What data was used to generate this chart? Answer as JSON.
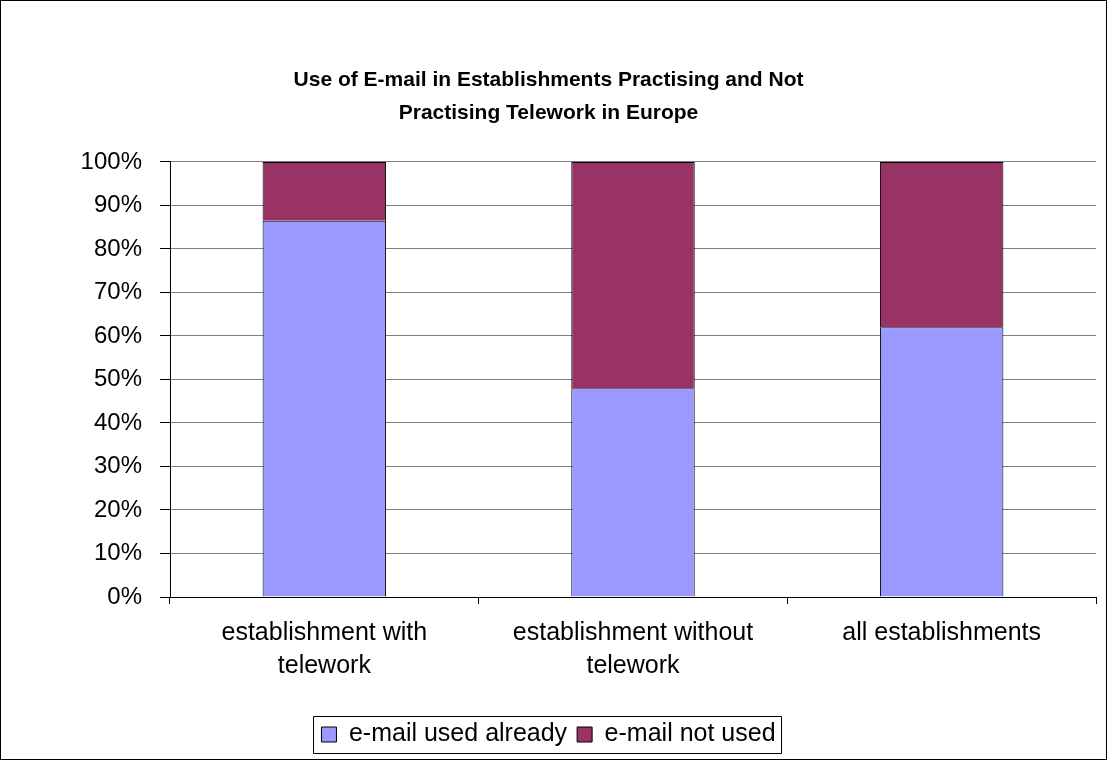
{
  "chart_data": {
    "type": "bar",
    "title": "Use of E-mail in Establishments Practising and Not Practising Telework in Europe",
    "categories": [
      "establishment with telework",
      "establishment without telework",
      "all establishments"
    ],
    "series": [
      {
        "name": "e-mail used already",
        "color": "#9999ff",
        "values": [
          86.5,
          48,
          62
        ]
      },
      {
        "name": "e-mail not used",
        "color": "#993366",
        "values": [
          13.5,
          52,
          38
        ]
      }
    ],
    "stacked": true,
    "ylim": [
      0,
      100
    ],
    "yticks": [
      {
        "value": 0,
        "label": "0%"
      },
      {
        "value": 10,
        "label": "10%"
      },
      {
        "value": 20,
        "label": "20%"
      },
      {
        "value": 30,
        "label": "30%"
      },
      {
        "value": 40,
        "label": "40%"
      },
      {
        "value": 50,
        "label": "50%"
      },
      {
        "value": 60,
        "label": "60%"
      },
      {
        "value": 70,
        "label": "70%"
      },
      {
        "value": 80,
        "label": "80%"
      },
      {
        "value": 90,
        "label": "90%"
      },
      {
        "value": 100,
        "label": "100%"
      }
    ],
    "grid": "y",
    "legend": "bottom"
  }
}
